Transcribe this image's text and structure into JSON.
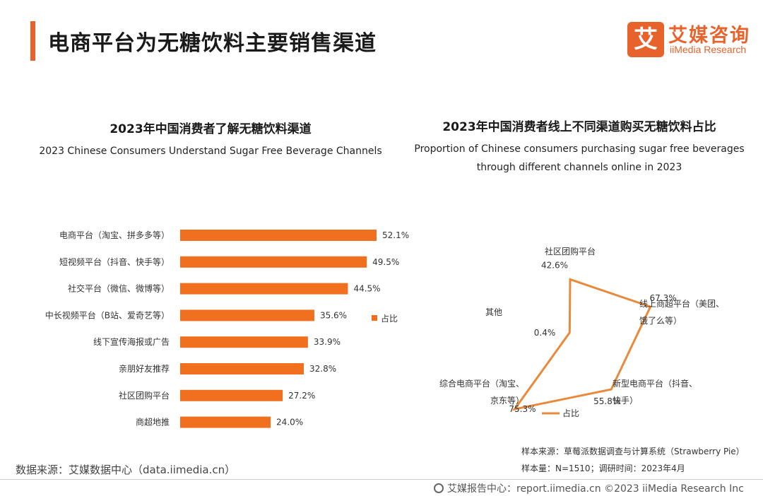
{
  "header": {
    "title": "电商平台为无糖饮料主要销售渠道",
    "logo_mark": "艾",
    "logo_cn": "艾媒咨询",
    "logo_en": "iiMedia Research"
  },
  "left_chart": {
    "title_cn": "2023年中国消费者了解无糖饮料渠道",
    "title_en": "2023 Chinese Consumers Understand Sugar Free Beverage Channels"
  },
  "right_chart": {
    "title_cn": "2023年中国消费者线上不同渠道购买无糖饮料占比",
    "title_en_1": "Proportion of Chinese consumers purchasing sugar free beverages",
    "title_en_2": "through different channels online in 2023"
  },
  "colors": {
    "accent": "#e8622c",
    "bar": "#f07020",
    "radar_line": "#e98a3a"
  },
  "chart_data": [
    {
      "type": "bar",
      "orientation": "horizontal",
      "categories": [
        "电商平台（淘宝、拼多多等）",
        "短视频平台（抖音、快手等）",
        "社交平台（微信、微博等）",
        "中长视频平台（B站、爱奇艺等）",
        "线下宣传海报或广告",
        "亲朋好友推荐",
        "社区团购平台",
        "商超地推"
      ],
      "values": [
        52.1,
        49.5,
        44.5,
        35.6,
        33.9,
        32.8,
        27.2,
        24.0
      ],
      "labels": [
        "52.1%",
        "49.5%",
        "44.5%",
        "35.6%",
        "33.9%",
        "32.8%",
        "27.2%",
        "24.0%"
      ],
      "legend": [
        "占比"
      ],
      "legend_position": "right",
      "xlim": [
        0,
        60
      ]
    },
    {
      "type": "radar",
      "axes": [
        "社区团购平台",
        "线上商超平台（美团、饿了么等）",
        "新型电商平台（抖音、快手）",
        "综合电商平台（淘宝、京东等）",
        "其他"
      ],
      "axis_label_lines": [
        [
          "社区团购平台"
        ],
        [
          "线上商超平台（美团、",
          "饿了么等）"
        ],
        [
          "新型电商平台（抖音、",
          "快手）"
        ],
        [
          "综合电商平台（淘宝、",
          "京东等）"
        ],
        [
          "其他"
        ]
      ],
      "values": [
        42.6,
        67.3,
        55.8,
        75.3,
        0.4
      ],
      "labels": [
        "42.6%",
        "67.3%",
        "55.8%",
        "75.3%",
        "0.4%"
      ],
      "legend": [
        "占比"
      ],
      "legend_position": "bottom",
      "rmax": 80
    }
  ],
  "footer": {
    "source": "数据来源：艾媒数据中心（data.iimedia.cn）",
    "sample_source": "样本来源：草莓派数据调查与计算系统（Strawberry Pie）",
    "sample_size": "样本量：N=1510；调研时间：2023年4月",
    "report_center": "艾媒报告中心：report.iimedia.cn  ©2023  iiMedia Research  Inc"
  }
}
